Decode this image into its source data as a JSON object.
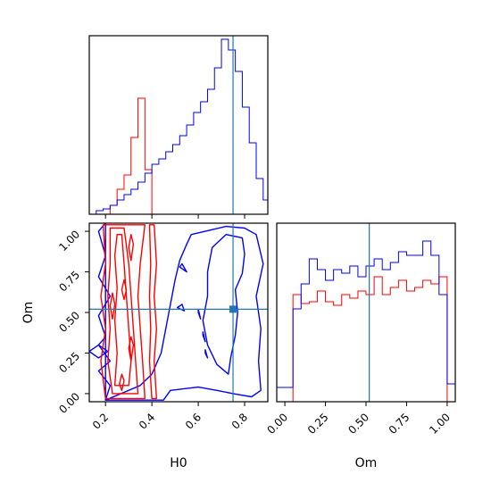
{
  "chart_data": {
    "type": "corner",
    "parameters": [
      "H0",
      "Om"
    ],
    "truths": {
      "H0": 0.75,
      "Om": 0.52
    },
    "colors": {
      "red": "#ff0000",
      "blue": "#0000ff",
      "truth": "#1f77b4",
      "axes": "#000000"
    },
    "grid": false,
    "panels": {
      "h0_hist": {
        "xlim": [
          0.13,
          0.9
        ],
        "bins": [
          0.13,
          0.16,
          0.19,
          0.22,
          0.25,
          0.28,
          0.31,
          0.34,
          0.37,
          0.4,
          0.43,
          0.46,
          0.49,
          0.52,
          0.55,
          0.58,
          0.61,
          0.64,
          0.67,
          0.7,
          0.73,
          0.76,
          0.79,
          0.82,
          0.85,
          0.88,
          0.91
        ],
        "series": [
          {
            "color": "red",
            "values": [
              0,
              0,
              0,
              0.05,
              0.14,
              0.22,
              0.43,
              0.65,
              0.25,
              0,
              0,
              0,
              0,
              0,
              0,
              0,
              0,
              0,
              0,
              0,
              0,
              0,
              0,
              0,
              0,
              0
            ]
          },
          {
            "color": "blue",
            "values": [
              0,
              0.02,
              0.03,
              0.05,
              0.08,
              0.11,
              0.14,
              0.18,
              0.23,
              0.28,
              0.31,
              0.35,
              0.39,
              0.44,
              0.5,
              0.57,
              0.63,
              0.7,
              0.82,
              0.98,
              0.92,
              0.8,
              0.6,
              0.4,
              0.2,
              0.08
            ]
          }
        ]
      },
      "om_hist": {
        "xlim": [
          -0.05,
          1.05
        ],
        "bins": [
          -0.05,
          0.0,
          0.05,
          0.1,
          0.15,
          0.2,
          0.25,
          0.3,
          0.35,
          0.4,
          0.45,
          0.5,
          0.55,
          0.6,
          0.65,
          0.7,
          0.75,
          0.8,
          0.85,
          0.9,
          0.95,
          1.0,
          1.05
        ],
        "series": [
          {
            "color": "red",
            "values": [
              0,
              0,
              0.6,
              0.55,
              0.56,
              0.62,
              0.56,
              0.54,
              0.6,
              0.58,
              0.62,
              0.6,
              0.7,
              0.6,
              0.64,
              0.68,
              0.62,
              0.64,
              0.68,
              0.66,
              0.7,
              0
            ]
          },
          {
            "color": "blue",
            "values": [
              0.08,
              0.08,
              0.52,
              0.66,
              0.8,
              0.74,
              0.68,
              0.74,
              0.72,
              0.76,
              0.7,
              0.76,
              0.8,
              0.74,
              0.78,
              0.84,
              0.82,
              0.82,
              0.9,
              0.82,
              0.6,
              0.1
            ]
          }
        ]
      },
      "joint": {
        "xlim": [
          0.13,
          0.9
        ],
        "ylim": [
          -0.05,
          1.05
        ],
        "contours": [
          {
            "color": "blue",
            "points": [
              [
                0.2,
                -0.04
              ],
              [
                0.22,
                0.05
              ],
              [
                0.17,
                0.14
              ],
              [
                0.22,
                0.2
              ],
              [
                0.17,
                0.3
              ],
              [
                0.2,
                0.35
              ],
              [
                0.17,
                0.48
              ],
              [
                0.22,
                0.6
              ],
              [
                0.17,
                0.72
              ],
              [
                0.2,
                0.85
              ],
              [
                0.17,
                1.0
              ],
              [
                0.2,
                1.05
              ]
            ]
          },
          {
            "color": "blue",
            "points": [
              [
                0.2,
                -0.04
              ],
              [
                0.45,
                -0.04
              ],
              [
                0.48,
                0.02
              ],
              [
                0.6,
                0.04
              ],
              [
                0.68,
                0.02
              ],
              [
                0.75,
                0.0
              ],
              [
                0.83,
                -0.02
              ],
              [
                0.87,
                0.02
              ],
              [
                0.86,
                0.2
              ],
              [
                0.87,
                0.4
              ],
              [
                0.85,
                0.6
              ],
              [
                0.88,
                0.8
              ],
              [
                0.85,
                0.98
              ],
              [
                0.8,
                1.02
              ],
              [
                0.72,
                1.03
              ],
              [
                0.63,
                1.0
              ],
              [
                0.57,
                0.98
              ],
              [
                0.55,
                0.92
              ],
              [
                0.52,
                0.82
              ],
              [
                0.5,
                0.7
              ],
              [
                0.48,
                0.55
              ],
              [
                0.46,
                0.4
              ],
              [
                0.44,
                0.25
              ],
              [
                0.4,
                0.12
              ],
              [
                0.35,
                0.05
              ]
            ]
          },
          {
            "color": "blue",
            "points": [
              [
                0.72,
                0.98
              ],
              [
                0.66,
                0.9
              ],
              [
                0.64,
                0.75
              ],
              [
                0.64,
                0.6
              ],
              [
                0.62,
                0.45
              ],
              [
                0.64,
                0.3
              ],
              [
                0.68,
                0.18
              ],
              [
                0.73,
                0.12
              ],
              [
                0.74,
                0.22
              ],
              [
                0.76,
                0.36
              ],
              [
                0.77,
                0.5
              ],
              [
                0.76,
                0.64
              ],
              [
                0.79,
                0.74
              ],
              [
                0.8,
                0.86
              ],
              [
                0.79,
                0.96
              ]
            ]
          },
          {
            "color": "blue",
            "points": [
              [
                0.52,
                0.78
              ],
              [
                0.55,
                0.75
              ],
              [
                0.53,
                0.8
              ]
            ]
          },
          {
            "color": "blue",
            "points": [
              [
                0.51,
                0.53
              ],
              [
                0.54,
                0.51
              ],
              [
                0.53,
                0.55
              ]
            ]
          },
          {
            "color": "blue",
            "points": [
              [
                0.6,
                0.5
              ],
              [
                0.61,
                0.46
              ],
              [
                0.6,
                0.52
              ]
            ]
          },
          {
            "color": "blue",
            "points": [
              [
                0.62,
                0.36
              ],
              [
                0.63,
                0.32
              ],
              [
                0.62,
                0.38
              ]
            ]
          },
          {
            "color": "blue",
            "points": [
              [
                0.63,
                0.25
              ],
              [
                0.64,
                0.22
              ],
              [
                0.63,
                0.27
              ]
            ]
          },
          {
            "color": "blue",
            "points": [
              [
                0.13,
                0.26
              ],
              [
                0.17,
                0.22
              ],
              [
                0.21,
                0.26
              ],
              [
                0.17,
                0.3
              ]
            ]
          },
          {
            "color": "red",
            "points": [
              [
                0.2,
                -0.03
              ],
              [
                0.18,
                0.2
              ],
              [
                0.2,
                0.4
              ],
              [
                0.18,
                0.6
              ],
              [
                0.2,
                0.8
              ],
              [
                0.19,
                1.04
              ],
              [
                0.37,
                1.04
              ],
              [
                0.35,
                0.8
              ],
              [
                0.34,
                0.6
              ],
              [
                0.35,
                0.4
              ],
              [
                0.36,
                0.2
              ],
              [
                0.37,
                -0.03
              ]
            ]
          },
          {
            "color": "red",
            "points": [
              [
                0.23,
                0.0
              ],
              [
                0.21,
                0.2
              ],
              [
                0.22,
                0.4
              ],
              [
                0.21,
                0.6
              ],
              [
                0.22,
                0.8
              ],
              [
                0.22,
                1.02
              ],
              [
                0.28,
                1.02
              ],
              [
                0.3,
                0.8
              ],
              [
                0.31,
                0.6
              ],
              [
                0.32,
                0.4
              ],
              [
                0.33,
                0.2
              ],
              [
                0.34,
                0.0
              ]
            ]
          },
          {
            "color": "red",
            "points": [
              [
                0.24,
                0.05
              ],
              [
                0.25,
                0.25
              ],
              [
                0.24,
                0.45
              ],
              [
                0.25,
                0.65
              ],
              [
                0.24,
                0.85
              ],
              [
                0.25,
                0.98
              ],
              [
                0.27,
                0.98
              ],
              [
                0.28,
                0.8
              ],
              [
                0.29,
                0.6
              ],
              [
                0.3,
                0.4
              ],
              [
                0.31,
                0.2
              ],
              [
                0.3,
                0.05
              ]
            ]
          },
          {
            "color": "red",
            "points": [
              [
                0.31,
                0.98
              ],
              [
                0.3,
                0.9
              ],
              [
                0.31,
                0.82
              ],
              [
                0.32,
                0.92
              ]
            ]
          },
          {
            "color": "red",
            "points": [
              [
                0.23,
                0.62
              ],
              [
                0.22,
                0.54
              ],
              [
                0.23,
                0.46
              ],
              [
                0.24,
                0.55
              ]
            ]
          },
          {
            "color": "red",
            "points": [
              [
                0.28,
                0.7
              ],
              [
                0.27,
                0.64
              ],
              [
                0.28,
                0.58
              ],
              [
                0.29,
                0.64
              ]
            ]
          },
          {
            "color": "red",
            "points": [
              [
                0.31,
                0.35
              ],
              [
                0.3,
                0.28
              ],
              [
                0.31,
                0.2
              ],
              [
                0.32,
                0.3
              ]
            ]
          },
          {
            "color": "red",
            "points": [
              [
                0.27,
                0.12
              ],
              [
                0.26,
                0.06
              ],
              [
                0.27,
                0.02
              ],
              [
                0.28,
                0.08
              ]
            ]
          },
          {
            "color": "red",
            "points": [
              [
                0.39,
                1.04
              ],
              [
                0.395,
                0.8
              ],
              [
                0.39,
                0.6
              ],
              [
                0.395,
                0.4
              ],
              [
                0.39,
                0.2
              ],
              [
                0.4,
                -0.03
              ],
              [
                0.42,
                -0.03
              ],
              [
                0.41,
                0.2
              ],
              [
                0.42,
                0.4
              ],
              [
                0.41,
                0.6
              ],
              [
                0.42,
                0.8
              ],
              [
                0.41,
                1.04
              ]
            ]
          }
        ]
      }
    },
    "ticks": {
      "h0_labels": [
        "0.2",
        "0.4",
        "0.6",
        "0.8"
      ],
      "h0_values": [
        0.2,
        0.4,
        0.6,
        0.8
      ],
      "om_labels": [
        "0.00",
        "0.25",
        "0.50",
        "0.75",
        "1.00"
      ],
      "om_values": [
        0.0,
        0.25,
        0.5,
        0.75,
        1.0
      ]
    },
    "xlabels": {
      "joint": "H0",
      "om_hist": "Om"
    },
    "ylabels": {
      "joint": "Om"
    }
  }
}
